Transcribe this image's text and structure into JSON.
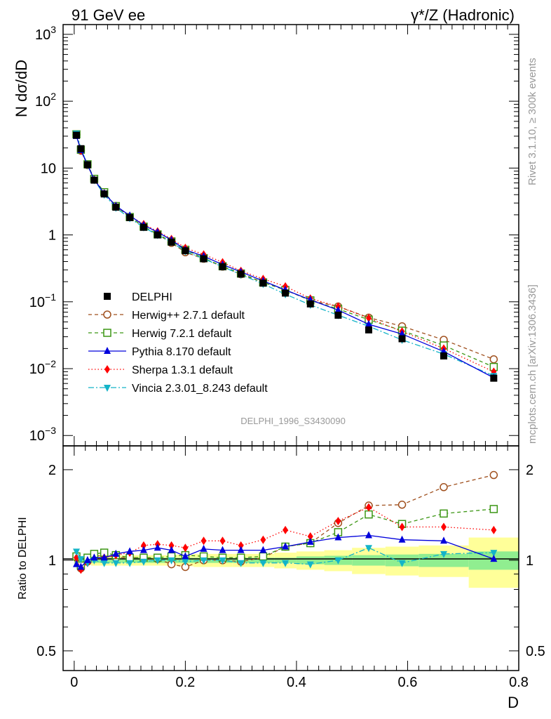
{
  "header": {
    "left_title": "91 GeV ee",
    "right_title": "γ*/Z (Hadronic)"
  },
  "side_labels": {
    "rivet": "Rivet 3.1.10, ≥ 300k events",
    "mcplots": "mcplots.cern.ch [arXiv:1306.3436]"
  },
  "analysis_id": "DELPHI_1996_S3430090",
  "colors": {
    "data": "#000000",
    "herwigpp": "#a0501e",
    "herwig7": "#3c9614",
    "pythia": "#0000dc",
    "sherpa": "#ff0000",
    "vincia": "#14b4c8",
    "band_inner": "#90ee90",
    "band_outer": "#ffff99"
  },
  "chart_data": [
    {
      "type": "line",
      "name": "main",
      "yscale": "log",
      "ylabel": "N dσ/dD",
      "xlim": [
        -0.02,
        0.8
      ],
      "ylim": [
        0.0007,
        1400
      ],
      "ytick_labels": [
        {
          "value": 1000,
          "base": "10",
          "exp": "3"
        },
        {
          "value": 100,
          "base": "10",
          "exp": "2"
        },
        {
          "value": 10,
          "base": "10",
          "exp": ""
        },
        {
          "value": 1,
          "base": "1",
          "exp": ""
        },
        {
          "value": 0.1,
          "base": "10",
          "exp": "−1"
        },
        {
          "value": 0.01,
          "base": "10",
          "exp": "−2"
        },
        {
          "value": 0.001,
          "base": "10",
          "exp": "−3"
        }
      ],
      "x": [
        0.004,
        0.012,
        0.024,
        0.036,
        0.054,
        0.075,
        0.1,
        0.125,
        0.15,
        0.175,
        0.2,
        0.233,
        0.267,
        0.3,
        0.34,
        0.38,
        0.425,
        0.475,
        0.53,
        0.59,
        0.665,
        0.755
      ],
      "series": [
        {
          "name": "DELPHI",
          "style": "data",
          "values": [
            31,
            19.5,
            11.2,
            6.6,
            4.1,
            2.6,
            1.82,
            1.3,
            1.0,
            0.78,
            0.58,
            0.44,
            0.335,
            0.26,
            0.19,
            0.135,
            0.093,
            0.063,
            0.038,
            0.028,
            0.0155,
            0.0072
          ]
        },
        {
          "name": "Herwig++ 2.7.1 default",
          "style": "herwigpp",
          "values": [
            31.5,
            18.2,
            11.1,
            6.8,
            4.3,
            2.7,
            1.86,
            1.33,
            1.02,
            0.76,
            0.55,
            0.44,
            0.335,
            0.258,
            0.195,
            0.15,
            0.105,
            0.085,
            0.058,
            0.043,
            0.027,
            0.0138
          ]
        },
        {
          "name": "Herwig 7.2.1 default",
          "style": "herwig7",
          "values": [
            32,
            18.8,
            11.4,
            6.9,
            4.35,
            2.7,
            1.85,
            1.33,
            1.02,
            0.8,
            0.6,
            0.45,
            0.34,
            0.265,
            0.195,
            0.15,
            0.105,
            0.078,
            0.054,
            0.037,
            0.0222,
            0.0106
          ]
        },
        {
          "name": "Pythia 8.170 default",
          "style": "pythia",
          "values": [
            30,
            18.5,
            11.2,
            6.7,
            4.2,
            2.72,
            1.95,
            1.4,
            1.1,
            0.84,
            0.6,
            0.48,
            0.36,
            0.28,
            0.205,
            0.15,
            0.107,
            0.075,
            0.046,
            0.033,
            0.018,
            0.0073
          ]
        },
        {
          "name": "Sherpa 1.3.1 default",
          "style": "sherpa",
          "values": [
            31.5,
            18.2,
            11.0,
            6.7,
            4.2,
            2.7,
            1.92,
            1.45,
            1.13,
            0.87,
            0.64,
            0.51,
            0.39,
            0.29,
            0.22,
            0.17,
            0.112,
            0.085,
            0.057,
            0.036,
            0.02,
            0.009
          ]
        },
        {
          "name": "Vincia 2.3.01_8.243 default",
          "style": "vincia",
          "values": [
            33,
            19.8,
            11.0,
            6.6,
            4.0,
            2.55,
            1.78,
            1.3,
            1.0,
            0.78,
            0.57,
            0.44,
            0.335,
            0.255,
            0.185,
            0.13,
            0.09,
            0.063,
            0.043,
            0.027,
            0.0165,
            0.0078
          ]
        }
      ]
    },
    {
      "type": "line",
      "name": "ratio",
      "yscale": "log",
      "ylabel": "Ratio to DELPHI",
      "xlabel": "D",
      "xlim": [
        -0.02,
        0.8
      ],
      "ylim": [
        0.43,
        2.4
      ],
      "ytick_labels": [
        "0.5",
        "1",
        "2"
      ],
      "ytick_values": [
        0.5,
        1,
        2
      ],
      "xtick_labels": [
        "0",
        "0.2",
        "0.4",
        "0.6",
        "0.8"
      ],
      "xtick_values": [
        0,
        0.2,
        0.4,
        0.6,
        0.8
      ],
      "x": [
        0.004,
        0.012,
        0.024,
        0.036,
        0.054,
        0.075,
        0.1,
        0.125,
        0.15,
        0.175,
        0.2,
        0.233,
        0.267,
        0.3,
        0.34,
        0.38,
        0.425,
        0.475,
        0.53,
        0.59,
        0.665,
        0.755
      ],
      "bin_edges": [
        0,
        0.008,
        0.016,
        0.03,
        0.042,
        0.065,
        0.085,
        0.115,
        0.135,
        0.165,
        0.185,
        0.215,
        0.25,
        0.285,
        0.32,
        0.36,
        0.4,
        0.45,
        0.5,
        0.56,
        0.62,
        0.71,
        0.8
      ],
      "band_inner": [
        0.02,
        0.02,
        0.02,
        0.02,
        0.02,
        0.02,
        0.02,
        0.02,
        0.02,
        0.02,
        0.02,
        0.02,
        0.02,
        0.02,
        0.02,
        0.02,
        0.03,
        0.035,
        0.04,
        0.045,
        0.05,
        0.07
      ],
      "band_outer": [
        0.03,
        0.03,
        0.03,
        0.04,
        0.04,
        0.04,
        0.04,
        0.04,
        0.04,
        0.04,
        0.045,
        0.05,
        0.05,
        0.05,
        0.05,
        0.06,
        0.07,
        0.08,
        0.1,
        0.11,
        0.12,
        0.19
      ],
      "series": [
        {
          "name": "Herwig++ 2.7.1 default",
          "style": "herwigpp",
          "values": [
            1.02,
            0.94,
            0.99,
            1.03,
            1.04,
            1.02,
            1.02,
            1.02,
            1.01,
            0.97,
            0.95,
            1.0,
            1.0,
            0.99,
            1.02,
            1.11,
            1.14,
            1.33,
            1.52,
            1.53,
            1.75,
            1.92
          ]
        },
        {
          "name": "Herwig 7.2.1 default",
          "style": "herwig7",
          "values": [
            1.03,
            0.96,
            1.02,
            1.05,
            1.06,
            1.04,
            1.02,
            1.02,
            1.02,
            1.03,
            1.04,
            1.03,
            1.02,
            1.02,
            1.03,
            1.11,
            1.14,
            1.24,
            1.42,
            1.32,
            1.43,
            1.48
          ]
        },
        {
          "name": "Pythia 8.170 default",
          "style": "pythia",
          "values": [
            0.97,
            0.95,
            1.0,
            1.02,
            1.02,
            1.05,
            1.07,
            1.08,
            1.1,
            1.08,
            1.03,
            1.09,
            1.08,
            1.08,
            1.08,
            1.11,
            1.15,
            1.19,
            1.21,
            1.17,
            1.16,
            1.01
          ]
        },
        {
          "name": "Sherpa 1.3.1 default",
          "style": "sherpa",
          "values": [
            1.02,
            0.93,
            0.98,
            1.01,
            1.02,
            1.04,
            1.06,
            1.12,
            1.13,
            1.12,
            1.1,
            1.16,
            1.16,
            1.12,
            1.17,
            1.26,
            1.2,
            1.35,
            1.5,
            1.29,
            1.29,
            1.26
          ]
        },
        {
          "name": "Vincia 2.3.01_8.243 default",
          "style": "vincia",
          "values": [
            1.07,
            1.01,
            0.98,
            1.0,
            0.98,
            0.98,
            0.98,
            0.99,
            1.0,
            1.0,
            0.99,
            1.0,
            1.0,
            0.98,
            0.98,
            0.98,
            0.97,
            1.0,
            1.1,
            0.98,
            1.05,
            1.06
          ]
        }
      ]
    }
  ]
}
